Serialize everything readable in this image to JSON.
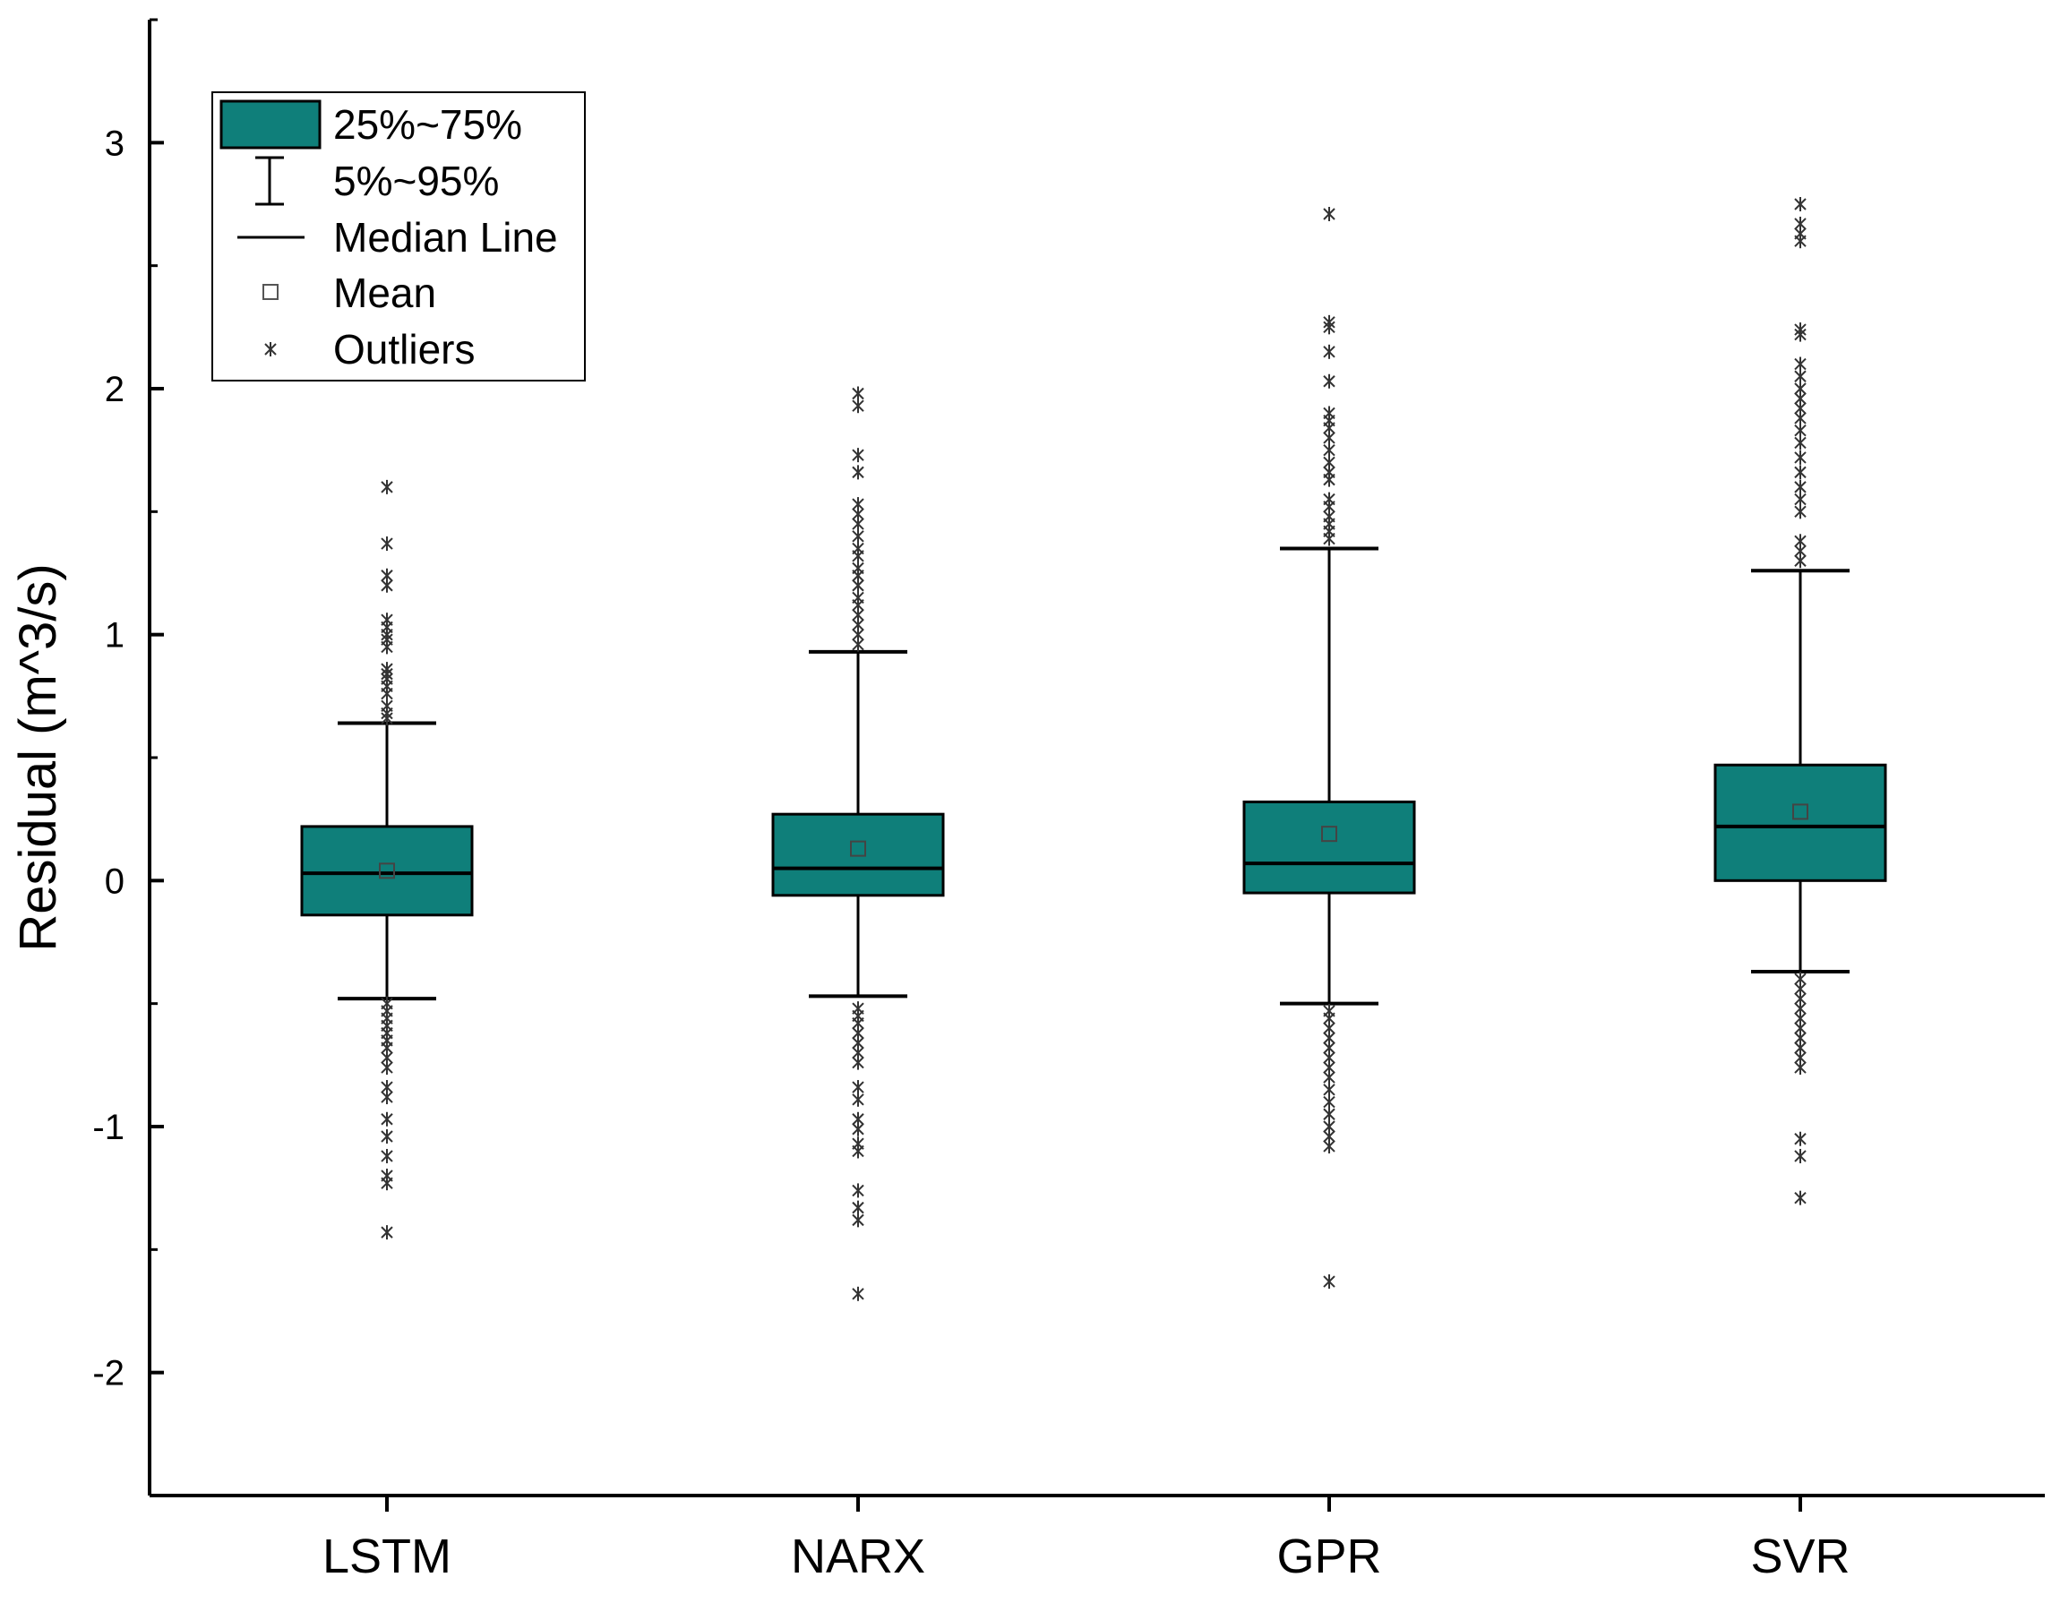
{
  "chart_data": {
    "type": "boxplot",
    "title": "",
    "xlabel": "",
    "ylabel": "Residual (m^3/s)",
    "ylim": [
      -2.5,
      3.5
    ],
    "yticks": [
      -2,
      -1,
      0,
      1,
      2,
      3
    ],
    "ytick_labels": [
      "-2",
      "-1",
      "0",
      "1",
      "2",
      "3"
    ],
    "box_color": "#0f7f7a",
    "categories": [
      "LSTM",
      "NARX",
      "GPR",
      "SVR"
    ],
    "series": [
      {
        "name": "LSTM",
        "whisker_low": -0.48,
        "q1": -0.14,
        "median": 0.03,
        "q3": 0.22,
        "whisker_high": 0.64,
        "mean": 0.04,
        "outliers": [
          1.6,
          1.37,
          1.24,
          1.2,
          1.06,
          1.03,
          1.0,
          0.98,
          0.95,
          0.86,
          0.84,
          0.82,
          0.79,
          0.76,
          0.71,
          0.68,
          0.66,
          -0.5,
          -0.53,
          -0.56,
          -0.59,
          -0.62,
          -0.65,
          -0.68,
          -0.72,
          -0.76,
          -0.84,
          -0.88,
          -0.97,
          -1.04,
          -1.12,
          -1.2,
          -1.23,
          -1.43
        ]
      },
      {
        "name": "NARX",
        "whisker_low": -0.47,
        "q1": -0.06,
        "median": 0.05,
        "q3": 0.27,
        "whisker_high": 0.93,
        "mean": 0.13,
        "outliers": [
          1.98,
          1.93,
          1.73,
          1.66,
          1.53,
          1.49,
          1.45,
          1.4,
          1.35,
          1.32,
          1.27,
          1.24,
          1.2,
          1.15,
          1.12,
          1.08,
          1.04,
          1.0,
          0.96,
          -0.52,
          -0.55,
          -0.58,
          -0.62,
          -0.66,
          -0.7,
          -0.74,
          -0.84,
          -0.89,
          -0.97,
          -1.01,
          -1.07,
          -1.1,
          -1.26,
          -1.33,
          -1.38,
          -1.68
        ]
      },
      {
        "name": "GPR",
        "whisker_low": -0.5,
        "q1": -0.05,
        "median": 0.07,
        "q3": 0.32,
        "whisker_high": 1.35,
        "mean": 0.19,
        "outliers": [
          2.71,
          2.27,
          2.25,
          2.15,
          2.03,
          1.9,
          1.87,
          1.84,
          1.8,
          1.75,
          1.7,
          1.66,
          1.63,
          1.55,
          1.52,
          1.48,
          1.45,
          1.42,
          1.39,
          -0.53,
          -0.56,
          -0.6,
          -0.64,
          -0.68,
          -0.72,
          -0.76,
          -0.8,
          -0.85,
          -0.9,
          -0.95,
          -1.0,
          -1.04,
          -1.08,
          -1.63
        ]
      },
      {
        "name": "SVR",
        "whisker_low": -0.37,
        "q1": 0.0,
        "median": 0.22,
        "q3": 0.47,
        "whisker_high": 1.26,
        "mean": 0.28,
        "outliers": [
          2.75,
          2.67,
          2.63,
          2.6,
          2.24,
          2.22,
          2.1,
          2.05,
          2.0,
          1.96,
          1.92,
          1.88,
          1.83,
          1.78,
          1.72,
          1.66,
          1.6,
          1.55,
          1.5,
          1.38,
          1.34,
          1.3,
          -0.4,
          -0.44,
          -0.48,
          -0.52,
          -0.56,
          -0.6,
          -0.64,
          -0.68,
          -0.72,
          -0.76,
          -1.05,
          -1.12,
          -1.29
        ]
      }
    ],
    "legend": {
      "location": "top-left",
      "entries": [
        "25%~75%",
        "5%~95%",
        "Median Line",
        "Mean",
        "Outliers"
      ]
    }
  }
}
